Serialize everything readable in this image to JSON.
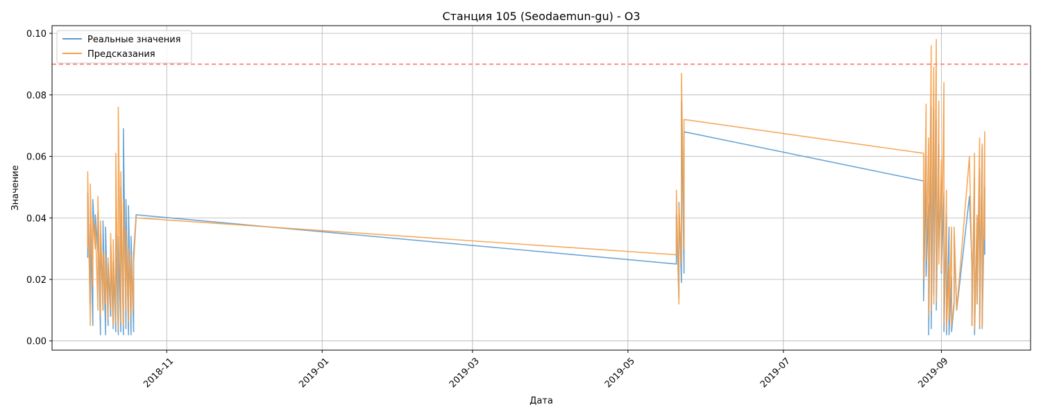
{
  "chart_data": {
    "type": "line",
    "title": "Станция 105 (Seodaemun-gu) - O3",
    "xlabel": "Дата",
    "ylabel": "Значение",
    "x_ticks": [
      "2018-11",
      "2019-01",
      "2019-03",
      "2019-05",
      "2019-07",
      "2019-09"
    ],
    "y_ticks": [
      "0.00",
      "0.02",
      "0.04",
      "0.06",
      "0.08",
      "0.10"
    ],
    "xlim": [
      "2018-09-17",
      "2019-10-06"
    ],
    "ylim": [
      -0.003,
      0.1025
    ],
    "grid": true,
    "legend_position": "upper-left",
    "threshold": {
      "value": 0.09,
      "color": "#ff6b6b",
      "style": "dashed"
    },
    "series": [
      {
        "name": "Реальные значения",
        "color": "#5b9bd0",
        "points": [
          [
            "2018-10-01",
            0.027
          ],
          [
            "2018-10-01",
            0.048
          ],
          [
            "2018-10-02",
            0.012
          ],
          [
            "2018-10-02",
            0.038
          ],
          [
            "2018-10-03",
            0.005
          ],
          [
            "2018-10-03",
            0.046
          ],
          [
            "2018-10-04",
            0.03
          ],
          [
            "2018-10-04",
            0.041
          ],
          [
            "2018-10-05",
            0.029
          ],
          [
            "2018-10-05",
            0.042
          ],
          [
            "2018-10-06",
            0.002
          ],
          [
            "2018-10-06",
            0.035
          ],
          [
            "2018-10-07",
            0.01
          ],
          [
            "2018-10-07",
            0.039
          ],
          [
            "2018-10-08",
            0.002
          ],
          [
            "2018-10-08",
            0.037
          ],
          [
            "2018-10-09",
            0.005
          ],
          [
            "2018-10-09",
            0.025
          ],
          [
            "2018-10-10",
            0.008
          ],
          [
            "2018-10-10",
            0.031
          ],
          [
            "2018-10-11",
            0.004
          ],
          [
            "2018-10-11",
            0.026
          ],
          [
            "2018-10-12",
            0.003
          ],
          [
            "2018-10-12",
            0.035
          ],
          [
            "2018-10-13",
            0.002
          ],
          [
            "2018-10-13",
            0.034
          ],
          [
            "2018-10-14",
            0.003
          ],
          [
            "2018-10-14",
            0.05
          ],
          [
            "2018-10-15",
            0.002
          ],
          [
            "2018-10-15",
            0.069
          ],
          [
            "2018-10-16",
            0.004
          ],
          [
            "2018-10-16",
            0.046
          ],
          [
            "2018-10-17",
            0.002
          ],
          [
            "2018-10-17",
            0.044
          ],
          [
            "2018-10-18",
            0.002
          ],
          [
            "2018-10-18",
            0.034
          ],
          [
            "2018-10-19",
            0.003
          ],
          [
            "2018-10-19",
            0.028
          ],
          [
            "2018-10-20",
            0.041
          ],
          [
            "2019-05-20",
            0.025
          ],
          [
            "2019-05-20",
            0.041
          ],
          [
            "2019-05-21",
            0.014
          ],
          [
            "2019-05-21",
            0.045
          ],
          [
            "2019-05-22",
            0.019
          ],
          [
            "2019-05-22",
            0.078
          ],
          [
            "2019-05-23",
            0.022
          ],
          [
            "2019-05-23",
            0.068
          ],
          [
            "2019-08-25",
            0.052
          ],
          [
            "2019-08-25",
            0.013
          ],
          [
            "2019-08-26",
            0.06
          ],
          [
            "2019-08-26",
            0.021
          ],
          [
            "2019-08-27",
            0.045
          ],
          [
            "2019-08-27",
            0.002
          ],
          [
            "2019-08-28",
            0.076
          ],
          [
            "2019-08-28",
            0.004
          ],
          [
            "2019-08-29",
            0.075
          ],
          [
            "2019-08-29",
            0.015
          ],
          [
            "2019-08-30",
            0.072
          ],
          [
            "2019-08-30",
            0.01
          ],
          [
            "2019-08-31",
            0.064
          ],
          [
            "2019-08-31",
            0.03
          ],
          [
            "2019-09-01",
            0.052
          ],
          [
            "2019-09-01",
            0.022
          ],
          [
            "2019-09-02",
            0.048
          ],
          [
            "2019-09-02",
            0.003
          ],
          [
            "2019-09-03",
            0.041
          ],
          [
            "2019-09-03",
            0.002
          ],
          [
            "2019-09-04",
            0.037
          ],
          [
            "2019-09-04",
            0.002
          ],
          [
            "2019-09-05",
            0.021
          ],
          [
            "2019-09-05",
            0.003
          ],
          [
            "2019-09-06",
            0.012
          ],
          [
            "2019-09-06",
            0.034
          ],
          [
            "2019-09-07",
            0.01
          ],
          [
            "2019-09-12",
            0.047
          ],
          [
            "2019-09-13",
            0.025
          ],
          [
            "2019-09-13",
            0.005
          ],
          [
            "2019-09-14",
            0.053
          ],
          [
            "2019-09-14",
            0.002
          ],
          [
            "2019-09-15",
            0.04
          ],
          [
            "2019-09-15",
            0.012
          ],
          [
            "2019-09-16",
            0.056
          ],
          [
            "2019-09-16",
            0.004
          ],
          [
            "2019-09-17",
            0.063
          ],
          [
            "2019-09-17",
            0.004
          ],
          [
            "2019-09-18",
            0.05
          ],
          [
            "2019-09-18",
            0.028
          ]
        ]
      },
      {
        "name": "Предсказания",
        "color": "#f5a04a",
        "points": [
          [
            "2018-10-01",
            0.03
          ],
          [
            "2018-10-01",
            0.055
          ],
          [
            "2018-10-02",
            0.005
          ],
          [
            "2018-10-02",
            0.051
          ],
          [
            "2018-10-03",
            0.018
          ],
          [
            "2018-10-03",
            0.04
          ],
          [
            "2018-10-04",
            0.03
          ],
          [
            "2018-10-04",
            0.038
          ],
          [
            "2018-10-05",
            0.01
          ],
          [
            "2018-10-05",
            0.047
          ],
          [
            "2018-10-06",
            0.008
          ],
          [
            "2018-10-06",
            0.039
          ],
          [
            "2018-10-07",
            0.01
          ],
          [
            "2018-10-07",
            0.029
          ],
          [
            "2018-10-08",
            0.012
          ],
          [
            "2018-10-08",
            0.028
          ],
          [
            "2018-10-09",
            0.007
          ],
          [
            "2018-10-09",
            0.027
          ],
          [
            "2018-10-10",
            0.01
          ],
          [
            "2018-10-10",
            0.035
          ],
          [
            "2018-10-11",
            0.005
          ],
          [
            "2018-10-11",
            0.033
          ],
          [
            "2018-10-12",
            0.006
          ],
          [
            "2018-10-12",
            0.061
          ],
          [
            "2018-10-13",
            0.004
          ],
          [
            "2018-10-13",
            0.076
          ],
          [
            "2018-10-14",
            0.006
          ],
          [
            "2018-10-14",
            0.055
          ],
          [
            "2018-10-15",
            0.005
          ],
          [
            "2018-10-15",
            0.046
          ],
          [
            "2018-10-16",
            0.01
          ],
          [
            "2018-10-16",
            0.036
          ],
          [
            "2018-10-17",
            0.006
          ],
          [
            "2018-10-17",
            0.03
          ],
          [
            "2018-10-18",
            0.008
          ],
          [
            "2018-10-18",
            0.028
          ],
          [
            "2018-10-19",
            0.01
          ],
          [
            "2018-10-19",
            0.025
          ],
          [
            "2018-10-20",
            0.04
          ],
          [
            "2019-05-20",
            0.028
          ],
          [
            "2019-05-20",
            0.049
          ],
          [
            "2019-05-21",
            0.012
          ],
          [
            "2019-05-21",
            0.044
          ],
          [
            "2019-05-22",
            0.025
          ],
          [
            "2019-05-22",
            0.087
          ],
          [
            "2019-05-23",
            0.03
          ],
          [
            "2019-05-23",
            0.072
          ],
          [
            "2019-08-25",
            0.061
          ],
          [
            "2019-08-25",
            0.02
          ],
          [
            "2019-08-26",
            0.077
          ],
          [
            "2019-08-26",
            0.026
          ],
          [
            "2019-08-27",
            0.066
          ],
          [
            "2019-08-27",
            0.008
          ],
          [
            "2019-08-28",
            0.096
          ],
          [
            "2019-08-28",
            0.01
          ],
          [
            "2019-08-29",
            0.089
          ],
          [
            "2019-08-29",
            0.012
          ],
          [
            "2019-08-30",
            0.098
          ],
          [
            "2019-08-30",
            0.013
          ],
          [
            "2019-08-31",
            0.078
          ],
          [
            "2019-08-31",
            0.025
          ],
          [
            "2019-09-01",
            0.059
          ],
          [
            "2019-09-01",
            0.023
          ],
          [
            "2019-09-02",
            0.084
          ],
          [
            "2019-09-02",
            0.006
          ],
          [
            "2019-09-03",
            0.049
          ],
          [
            "2019-09-03",
            0.004
          ],
          [
            "2019-09-04",
            0.025
          ],
          [
            "2019-09-04",
            0.007
          ],
          [
            "2019-09-05",
            0.037
          ],
          [
            "2019-09-05",
            0.005
          ],
          [
            "2019-09-06",
            0.013
          ],
          [
            "2019-09-06",
            0.037
          ],
          [
            "2019-09-07",
            0.01
          ],
          [
            "2019-09-12",
            0.06
          ],
          [
            "2019-09-13",
            0.022
          ],
          [
            "2019-09-13",
            0.005
          ],
          [
            "2019-09-14",
            0.061
          ],
          [
            "2019-09-14",
            0.004
          ],
          [
            "2019-09-15",
            0.041
          ],
          [
            "2019-09-15",
            0.012
          ],
          [
            "2019-09-16",
            0.066
          ],
          [
            "2019-09-16",
            0.005
          ],
          [
            "2019-09-17",
            0.064
          ],
          [
            "2019-09-17",
            0.004
          ],
          [
            "2019-09-18",
            0.068
          ],
          [
            "2019-09-18",
            0.033
          ]
        ]
      }
    ]
  }
}
